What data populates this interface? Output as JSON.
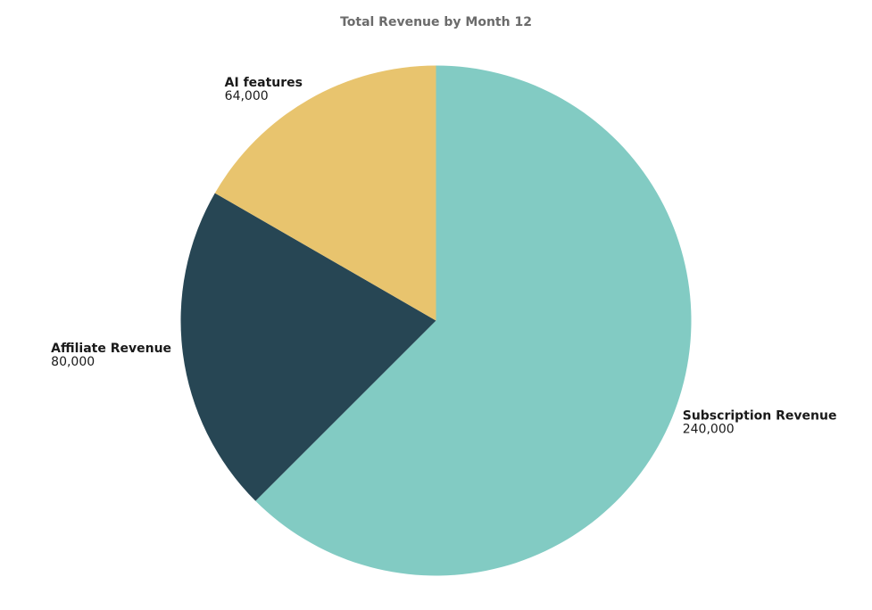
{
  "chart_data": {
    "type": "pie",
    "title": "Total Revenue by Month 12",
    "start_angle_deg": 0,
    "direction": "clockwise",
    "slices": [
      {
        "label": "Subscription Revenue",
        "value": 240000,
        "value_label": "240,000",
        "color": "#82cbc3"
      },
      {
        "label": "Affiliate Revenue",
        "value": 80000,
        "value_label": "80,000",
        "color": "#274654"
      },
      {
        "label": "AI features",
        "value": 64000,
        "value_label": "64,000",
        "color": "#e8c46e"
      }
    ]
  }
}
